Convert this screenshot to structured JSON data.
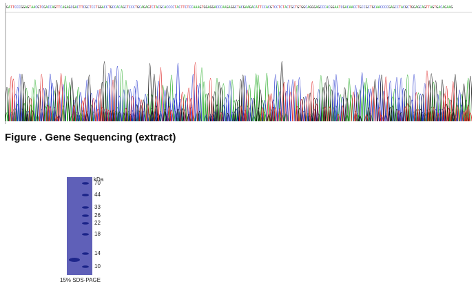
{
  "chromatogram": {
    "sequence_colors": {
      "A": "#22aa22",
      "C": "#2233cc",
      "G": "#111111",
      "T": "#dd2222"
    },
    "base_calls": "GATTCCCGGAGTAACGTCGACCAGTTCAGAGCGACTTCGCTCCTGGACCTGCCACAGCTCCCTGCAGAGTCTACGCACCCCTACTTCTCCAAAGTGGAGGACCCAAGAGGCTACGAAGACATTCCACGTCCTCTACTGCTGTGGCAGGGAGCCCACGGAATCGACAACCTGCCGCTGCAACCCCGAGCCTACGCTGGAGCAGTTAGTGACAGAAG"
  },
  "figure_caption": "Figure . Gene Sequencing (extract)",
  "gel": {
    "unit_label": "kDa",
    "markers": [
      "70",
      "44",
      "33",
      "26",
      "22",
      "18",
      "14",
      "10"
    ],
    "caption": "15% SDS-PAGE",
    "colors": {
      "gel": "#5f60b8",
      "band": "#1f2a9a"
    }
  }
}
